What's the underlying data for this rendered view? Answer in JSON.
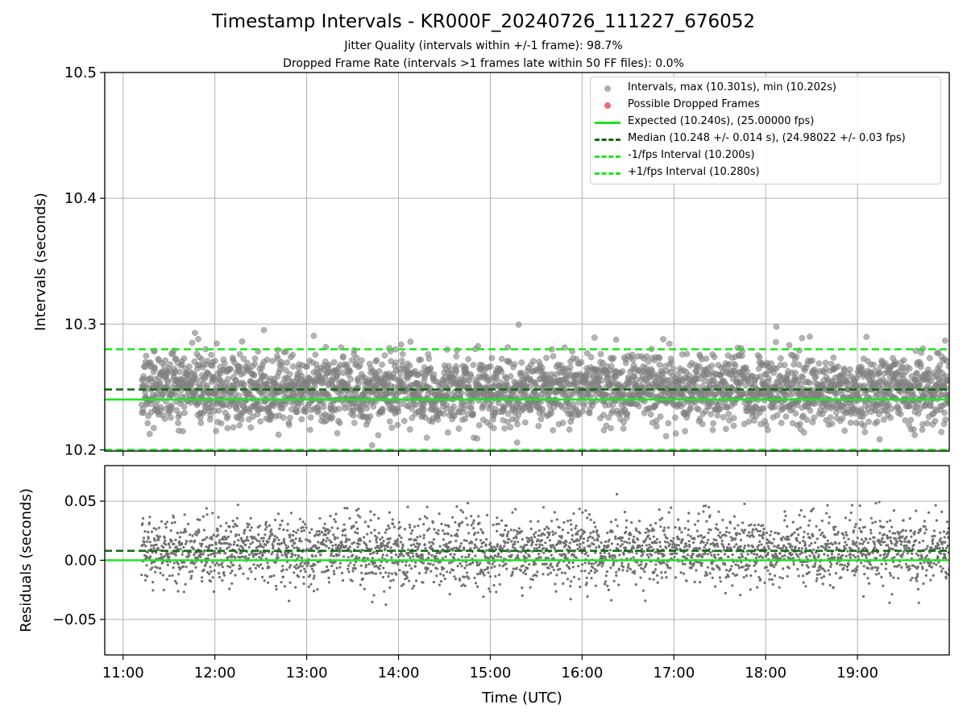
{
  "figure": {
    "title": "Timestamp Intervals - KR000F_20240726_111227_676052",
    "subtitle_jitter": "Jitter Quality (intervals within +/-1 frame): 98.7%",
    "subtitle_dropped": "Dropped Frame Rate (intervals >1 frames late within 50 FF files): 0.0%"
  },
  "colors": {
    "points": "#808080",
    "dropped": "#f05a5a",
    "expected": "#1ee61e",
    "median": "#0b6b0b",
    "interval_bounds": "#1ee61e",
    "grid": "#b0b0b0"
  },
  "legend": {
    "placement": "top-right",
    "items": [
      {
        "label": "Intervals, max (10.301s), min (10.202s)",
        "style": "dot",
        "color": "#9a9a9a"
      },
      {
        "label": "Possible Dropped Frames",
        "style": "dot",
        "color": "#f05a5a"
      },
      {
        "label": "Expected (10.240s), (25.00000 fps)",
        "style": "solid",
        "color": "#1ee61e"
      },
      {
        "label": "Median (10.248 +/- 0.014 s), (24.98022 +/- 0.03 fps)",
        "style": "dash",
        "color": "#0b6b0b"
      },
      {
        "label": "-1/fps Interval (10.200s)",
        "style": "dash",
        "color": "#1ee61e"
      },
      {
        "label": "+1/fps Interval (10.280s)",
        "style": "dash",
        "color": "#1ee61e"
      }
    ]
  },
  "chart_data": [
    {
      "type": "scatter",
      "panel": "intervals",
      "xlabel": "",
      "ylabel": "Intervals (seconds)",
      "xlim": [
        "10:48",
        "20:00"
      ],
      "ylim": [
        10.199,
        10.5
      ],
      "xticks": [
        "11:00",
        "12:00",
        "13:00",
        "14:00",
        "15:00",
        "16:00",
        "17:00",
        "18:00",
        "19:00"
      ],
      "xtick_labels_shown": false,
      "yticks": [
        10.2,
        10.3,
        10.4,
        10.5
      ],
      "ytick_labels": [
        "10.2",
        "10.3",
        "10.4",
        "10.5"
      ],
      "grid": true,
      "series": [
        {
          "name": "Intervals, max (10.301s), min (10.202s)",
          "x_range": [
            "11:12",
            "20:00"
          ],
          "count": 3100,
          "center": 10.248,
          "std": 0.014,
          "max": 10.301,
          "min": 10.202
        }
      ],
      "reference_lines": [
        {
          "name": "Expected (10.240s), (25.00000 fps)",
          "y": 10.24,
          "style": "solid"
        },
        {
          "name": "Median (10.248 +/- 0.014 s), (24.98022 +/- 0.03 fps)",
          "y": 10.248,
          "style": "dashed"
        },
        {
          "name": "-1/fps Interval (10.200s)",
          "y": 10.2,
          "style": "dashed"
        },
        {
          "name": "+1/fps Interval (10.280s)",
          "y": 10.28,
          "style": "dashed"
        }
      ]
    },
    {
      "type": "scatter",
      "panel": "residuals",
      "xlabel": "Time (UTC)",
      "ylabel": "Residuals (seconds)",
      "xlim": [
        "10:48",
        "20:00"
      ],
      "ylim": [
        -0.08,
        0.08
      ],
      "xticks": [
        "11:00",
        "12:00",
        "13:00",
        "14:00",
        "15:00",
        "16:00",
        "17:00",
        "18:00",
        "19:00"
      ],
      "xtick_labels": [
        "11:00",
        "12:00",
        "13:00",
        "14:00",
        "15:00",
        "16:00",
        "17:00",
        "18:00",
        "19:00"
      ],
      "yticks": [
        -0.05,
        0.0,
        0.05
      ],
      "ytick_labels": [
        "−0.05",
        "0.00",
        "0.05"
      ],
      "grid": true,
      "series": [
        {
          "name": "",
          "x_range": [
            "11:12",
            "20:00"
          ],
          "count": 3100,
          "center": 0.008,
          "std": 0.014,
          "max": 0.061,
          "min": -0.038
        }
      ],
      "reference_lines": [
        {
          "name": "",
          "y": 0.0,
          "style": "solid"
        },
        {
          "name": "",
          "y": 0.008,
          "style": "dashed"
        }
      ]
    }
  ]
}
